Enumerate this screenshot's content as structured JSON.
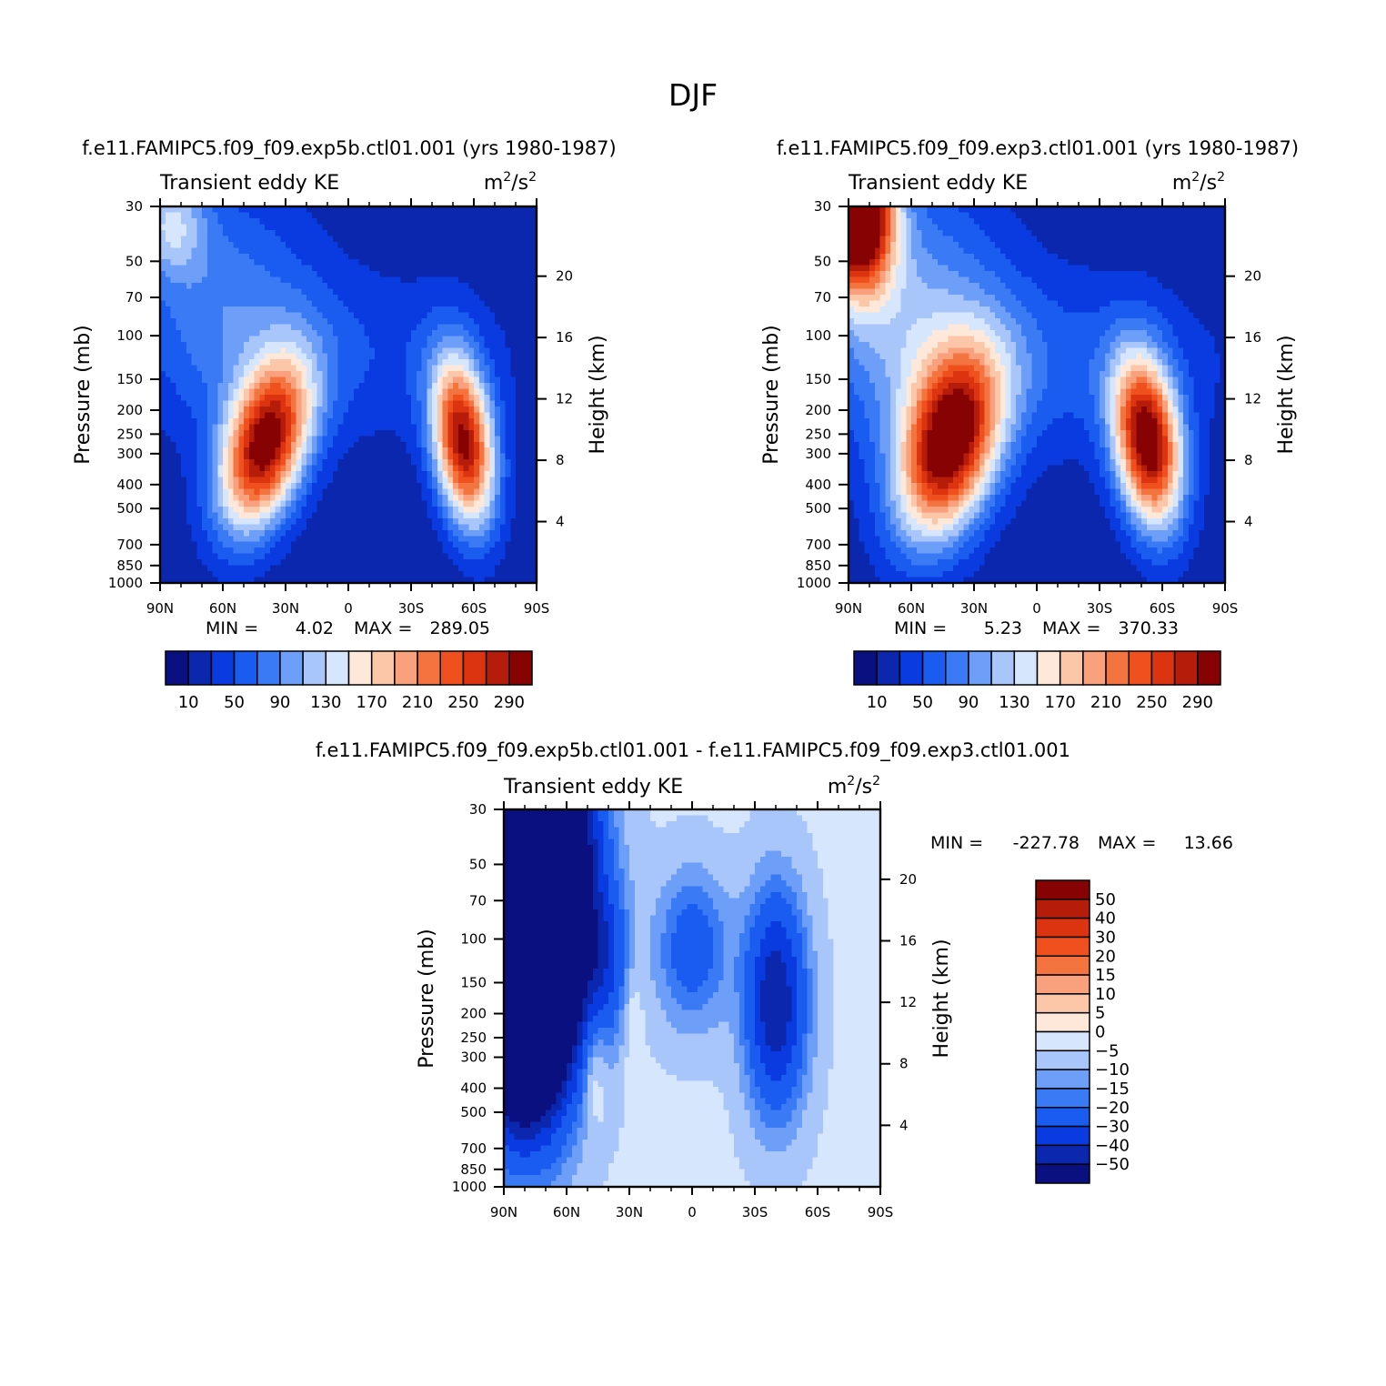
{
  "figure": {
    "title": "DJF"
  },
  "palette": {
    "abs_colors": [
      "#0a1080",
      "#0b27ad",
      "#0a3be0",
      "#1a5cf0",
      "#3a7af5",
      "#6d9ef8",
      "#a9c6fb",
      "#d6e6fd",
      "#fde8d9",
      "#fcc6a8",
      "#f9a07c",
      "#f4743f",
      "#f0501e",
      "#dc3410",
      "#b61c0a",
      "#870303"
    ],
    "diff_colors": [
      "#0a1080",
      "#0b27ad",
      "#0a3be0",
      "#1a5cf0",
      "#3a7af5",
      "#6d9ef8",
      "#a9c6fb",
      "#d6e6fd",
      "#fde8d9",
      "#fcc6a8",
      "#f9a07c",
      "#f4743f",
      "#f0501e",
      "#dc3410",
      "#b61c0a",
      "#870303"
    ]
  },
  "chart_data": [
    {
      "id": "panel1",
      "type": "heatmap",
      "case_title": "f.e11.FAMIPC5.f09_f09.exp5b.ctl01.001 (yrs 1980-1987)",
      "left_label": "Transient eddy KE",
      "units_base": "m",
      "units_sup1": "2",
      "units_mid": "/s",
      "units_sup2": "2",
      "ylabel": "Pressure (mb)",
      "y2label": "Height (km)",
      "xticks": [
        "90N",
        "60N",
        "30N",
        "0",
        "30S",
        "60S",
        "90S"
      ],
      "yticks": [
        "30",
        "50",
        "70",
        "100",
        "150",
        "200",
        "250",
        "300",
        "400",
        "500",
        "700",
        "850",
        "1000"
      ],
      "height_ticks": [
        "20",
        "16",
        "12",
        "8",
        "4"
      ],
      "xlim": [
        -90,
        90
      ],
      "ylim_mb": [
        1000,
        30
      ],
      "min_label": "MIN =",
      "min_value": "4.02",
      "max_label": "MAX =",
      "max_value": "289.05",
      "colorbar_labels": [
        "10",
        "50",
        "90",
        "130",
        "170",
        "210",
        "250",
        "290"
      ],
      "levels": [
        10,
        30,
        50,
        70,
        90,
        110,
        130,
        150,
        170,
        190,
        210,
        230,
        250,
        270,
        290
      ],
      "background": 12,
      "features": [
        {
          "lat": -40,
          "p": 280,
          "peak": 285,
          "dlat": 14,
          "dz": 0.55,
          "tilt": -6
        },
        {
          "lat": 55,
          "p": 270,
          "peak": 280,
          "dlat": 10,
          "dz": 0.55,
          "tilt": 3
        },
        {
          "lat": -85,
          "p": 35,
          "peak": 95,
          "dlat": 12,
          "dz": 0.35,
          "tilt": 0
        },
        {
          "lat": -60,
          "p": 70,
          "peak": 60,
          "dlat": 30,
          "dz": 0.8,
          "tilt": 0
        },
        {
          "lat": 0,
          "p": 120,
          "peak": 35,
          "dlat": 60,
          "dz": 0.6,
          "tilt": 0
        }
      ]
    },
    {
      "id": "panel2",
      "type": "heatmap",
      "case_title": "f.e11.FAMIPC5.f09_f09.exp3.ctl01.001 (yrs 1980-1987)",
      "left_label": "Transient eddy KE",
      "units_base": "m",
      "units_sup1": "2",
      "units_mid": "/s",
      "units_sup2": "2",
      "ylabel": "Pressure (mb)",
      "y2label": "Height (km)",
      "xticks": [
        "90N",
        "60N",
        "30N",
        "0",
        "30S",
        "60S",
        "90S"
      ],
      "yticks": [
        "30",
        "50",
        "70",
        "100",
        "150",
        "200",
        "250",
        "300",
        "400",
        "500",
        "700",
        "850",
        "1000"
      ],
      "height_ticks": [
        "20",
        "16",
        "12",
        "8",
        "4"
      ],
      "xlim": [
        -90,
        90
      ],
      "ylim_mb": [
        1000,
        30
      ],
      "min_label": "MIN =",
      "min_value": "5.23",
      "max_label": "MAX =",
      "max_value": "370.33",
      "colorbar_labels": [
        "10",
        "50",
        "90",
        "130",
        "170",
        "210",
        "250",
        "290"
      ],
      "levels": [
        10,
        30,
        50,
        70,
        90,
        110,
        130,
        150,
        170,
        190,
        210,
        230,
        250,
        270,
        290
      ],
      "background": 14,
      "features": [
        {
          "lat": -42,
          "p": 280,
          "peak": 290,
          "dlat": 16,
          "dz": 0.6,
          "tilt": -6
        },
        {
          "lat": 53,
          "p": 270,
          "peak": 300,
          "dlat": 11,
          "dz": 0.55,
          "tilt": 3
        },
        {
          "lat": -86,
          "p": 32,
          "peak": 370,
          "dlat": 12,
          "dz": 0.5,
          "tilt": 0
        },
        {
          "lat": -60,
          "p": 80,
          "peak": 80,
          "dlat": 30,
          "dz": 0.9,
          "tilt": 0
        },
        {
          "lat": 0,
          "p": 130,
          "peak": 45,
          "dlat": 60,
          "dz": 0.6,
          "tilt": 0
        }
      ]
    },
    {
      "id": "panel3",
      "type": "heatmap",
      "case_title": "f.e11.FAMIPC5.f09_f09.exp5b.ctl01.001 - f.e11.FAMIPC5.f09_f09.exp3.ctl01.001",
      "left_label": "Transient eddy KE",
      "units_base": "m",
      "units_sup1": "2",
      "units_mid": "/s",
      "units_sup2": "2",
      "ylabel": "Pressure (mb)",
      "y2label": "Height (km)",
      "xticks": [
        "90N",
        "60N",
        "30N",
        "0",
        "30S",
        "60S",
        "90S"
      ],
      "yticks": [
        "30",
        "50",
        "70",
        "100",
        "150",
        "200",
        "250",
        "300",
        "400",
        "500",
        "700",
        "850",
        "1000"
      ],
      "height_ticks": [
        "20",
        "16",
        "12",
        "8",
        "4"
      ],
      "xlim": [
        -90,
        90
      ],
      "ylim_mb": [
        1000,
        30
      ],
      "min_label": "MIN =",
      "min_value": "-227.78",
      "max_label": "MAX =",
      "max_value": "13.66",
      "colorbar_labels": [
        "50",
        "40",
        "30",
        "20",
        "15",
        "10",
        "5",
        "0",
        "-5",
        "-10",
        "-15",
        "-20",
        "-30",
        "-40",
        "-50"
      ],
      "levels": [
        -50,
        -40,
        -30,
        -20,
        -15,
        -10,
        -5,
        0,
        5,
        10,
        15,
        20,
        30,
        40,
        50
      ],
      "background": -4,
      "features": [
        {
          "lat": -80,
          "p": 50,
          "peak": -200,
          "dlat": 18,
          "dz": 1.2,
          "tilt": 0
        },
        {
          "lat": -80,
          "p": 200,
          "peak": -60,
          "dlat": 14,
          "dz": 0.7,
          "tilt": 0
        },
        {
          "lat": 0,
          "p": 110,
          "peak": -22,
          "dlat": 12,
          "dz": 0.5,
          "tilt": 0
        },
        {
          "lat": 40,
          "p": 180,
          "peak": -45,
          "dlat": 10,
          "dz": 0.7,
          "tilt": 0
        },
        {
          "lat": -47,
          "p": 320,
          "peak": 12,
          "dlat": 4,
          "dz": 0.4,
          "tilt": 0
        },
        {
          "lat": -28,
          "p": 210,
          "peak": 7,
          "dlat": 3,
          "dz": 0.4,
          "tilt": 0
        },
        {
          "lat": -42,
          "p": 120,
          "peak": -22,
          "dlat": 8,
          "dz": 0.5,
          "tilt": 0
        }
      ]
    }
  ]
}
